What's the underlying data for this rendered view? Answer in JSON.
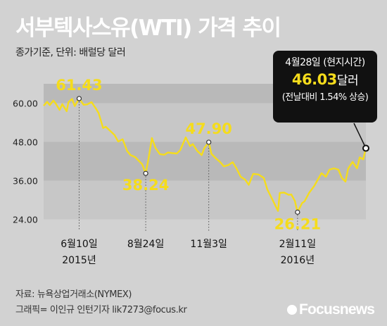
{
  "header": {
    "title": "서부텍사스유(WTI) 가격 추이",
    "subtitle": "종가기준, 단위: 배럴당 달러"
  },
  "callout": {
    "date": "4월28일 (현지시간)",
    "price": "46.03",
    "unit": "달러",
    "note": "(전날대비 1.54% 상승)"
  },
  "footer": {
    "source": "자료: 뉴욕상업거래소(NYMEX)",
    "credit": "그래픽= 이인규 인턴기자 lik7273@focus.kr",
    "logo": "Focusnews"
  },
  "colors": {
    "background": "#d2d2d2",
    "band_dark": "#b9b9b9",
    "band_light": "#c7c7c7",
    "line": "#f5dc1c",
    "annotation": "#f5dc1c",
    "title": "#ffffff",
    "callout_bg": "#111111"
  },
  "chart_data": {
    "type": "line",
    "ylim": [
      24,
      66
    ],
    "yticks": [
      24,
      36,
      48,
      60
    ],
    "ytick_labels": [
      "24.00",
      "36.00",
      "48.00",
      "60.00"
    ],
    "xlim": [
      "2015-05-01",
      "2016-04-28"
    ],
    "xticks": [
      {
        "date": "2015-06-10",
        "label": "6월10일",
        "sublabel": "2015년"
      },
      {
        "date": "2015-08-24",
        "label": "8월24일",
        "sublabel": ""
      },
      {
        "date": "2015-11-03",
        "label": "11월3일",
        "sublabel": ""
      },
      {
        "date": "2016-02-11",
        "label": "2월11일",
        "sublabel": "2016년"
      }
    ],
    "annotations": [
      {
        "date": "2015-06-10",
        "value": 61.43,
        "label": "61.43",
        "position": "above"
      },
      {
        "date": "2015-08-24",
        "value": 38.24,
        "label": "38.24",
        "position": "below"
      },
      {
        "date": "2015-11-03",
        "value": 47.9,
        "label": "47.90",
        "position": "above"
      },
      {
        "date": "2016-02-11",
        "value": 26.21,
        "label": "26.21",
        "position": "below"
      },
      {
        "date": "2016-04-28",
        "value": 46.03,
        "label": "",
        "position": "callout"
      }
    ],
    "series": [
      {
        "values": [
          [
            "2015-05-01",
            59.2
          ],
          [
            "2015-05-05",
            60.4
          ],
          [
            "2015-05-08",
            59.4
          ],
          [
            "2015-05-12",
            60.8
          ],
          [
            "2015-05-15",
            59.7
          ],
          [
            "2015-05-19",
            57.9
          ],
          [
            "2015-05-22",
            59.7
          ],
          [
            "2015-05-27",
            57.5
          ],
          [
            "2015-05-29",
            60.3
          ],
          [
            "2015-06-02",
            61.3
          ],
          [
            "2015-06-05",
            59.1
          ],
          [
            "2015-06-10",
            61.43
          ],
          [
            "2015-06-15",
            59.5
          ],
          [
            "2015-06-19",
            59.6
          ],
          [
            "2015-06-24",
            60.3
          ],
          [
            "2015-06-29",
            58.3
          ],
          [
            "2015-07-02",
            56.9
          ],
          [
            "2015-07-07",
            52.3
          ],
          [
            "2015-07-10",
            52.7
          ],
          [
            "2015-07-15",
            51.4
          ],
          [
            "2015-07-20",
            50.1
          ],
          [
            "2015-07-24",
            48.1
          ],
          [
            "2015-07-29",
            48.8
          ],
          [
            "2015-08-03",
            45.2
          ],
          [
            "2015-08-07",
            43.9
          ],
          [
            "2015-08-12",
            43.3
          ],
          [
            "2015-08-17",
            41.9
          ],
          [
            "2015-08-20",
            41.1
          ],
          [
            "2015-08-24",
            38.24
          ],
          [
            "2015-08-27",
            42.6
          ],
          [
            "2015-08-31",
            49.2
          ],
          [
            "2015-09-04",
            46.1
          ],
          [
            "2015-09-09",
            44.2
          ],
          [
            "2015-09-14",
            44.0
          ],
          [
            "2015-09-18",
            44.7
          ],
          [
            "2015-09-23",
            44.5
          ],
          [
            "2015-09-28",
            44.4
          ],
          [
            "2015-10-02",
            45.5
          ],
          [
            "2015-10-08",
            49.4
          ],
          [
            "2015-10-13",
            46.7
          ],
          [
            "2015-10-16",
            47.3
          ],
          [
            "2015-10-21",
            45.2
          ],
          [
            "2015-10-26",
            43.9
          ],
          [
            "2015-10-29",
            46.1
          ],
          [
            "2015-11-03",
            47.9
          ],
          [
            "2015-11-06",
            44.3
          ],
          [
            "2015-11-11",
            42.9
          ],
          [
            "2015-11-16",
            41.7
          ],
          [
            "2015-11-20",
            40.4
          ],
          [
            "2015-11-25",
            40.8
          ],
          [
            "2015-11-30",
            41.7
          ],
          [
            "2015-12-04",
            39.9
          ],
          [
            "2015-12-09",
            37.2
          ],
          [
            "2015-12-14",
            36.3
          ],
          [
            "2015-12-18",
            34.7
          ],
          [
            "2015-12-23",
            38.1
          ],
          [
            "2015-12-29",
            37.9
          ],
          [
            "2016-01-04",
            36.8
          ],
          [
            "2016-01-08",
            33.2
          ],
          [
            "2016-01-13",
            30.5
          ],
          [
            "2016-01-20",
            26.6
          ],
          [
            "2016-01-22",
            32.2
          ],
          [
            "2016-01-27",
            32.3
          ],
          [
            "2016-02-01",
            31.6
          ],
          [
            "2016-02-04",
            31.7
          ],
          [
            "2016-02-08",
            29.7
          ],
          [
            "2016-02-11",
            26.21
          ],
          [
            "2016-02-16",
            29.0
          ],
          [
            "2016-02-19",
            29.6
          ],
          [
            "2016-02-24",
            32.2
          ],
          [
            "2016-03-01",
            34.4
          ],
          [
            "2016-03-04",
            35.9
          ],
          [
            "2016-03-09",
            38.3
          ],
          [
            "2016-03-14",
            37.2
          ],
          [
            "2016-03-18",
            39.4
          ],
          [
            "2016-03-23",
            39.8
          ],
          [
            "2016-03-28",
            39.4
          ],
          [
            "2016-04-01",
            36.8
          ],
          [
            "2016-04-05",
            35.7
          ],
          [
            "2016-04-08",
            39.7
          ],
          [
            "2016-04-13",
            41.8
          ],
          [
            "2016-04-18",
            39.8
          ],
          [
            "2016-04-21",
            43.2
          ],
          [
            "2016-04-25",
            42.6
          ],
          [
            "2016-04-28",
            46.03
          ]
        ]
      }
    ]
  }
}
